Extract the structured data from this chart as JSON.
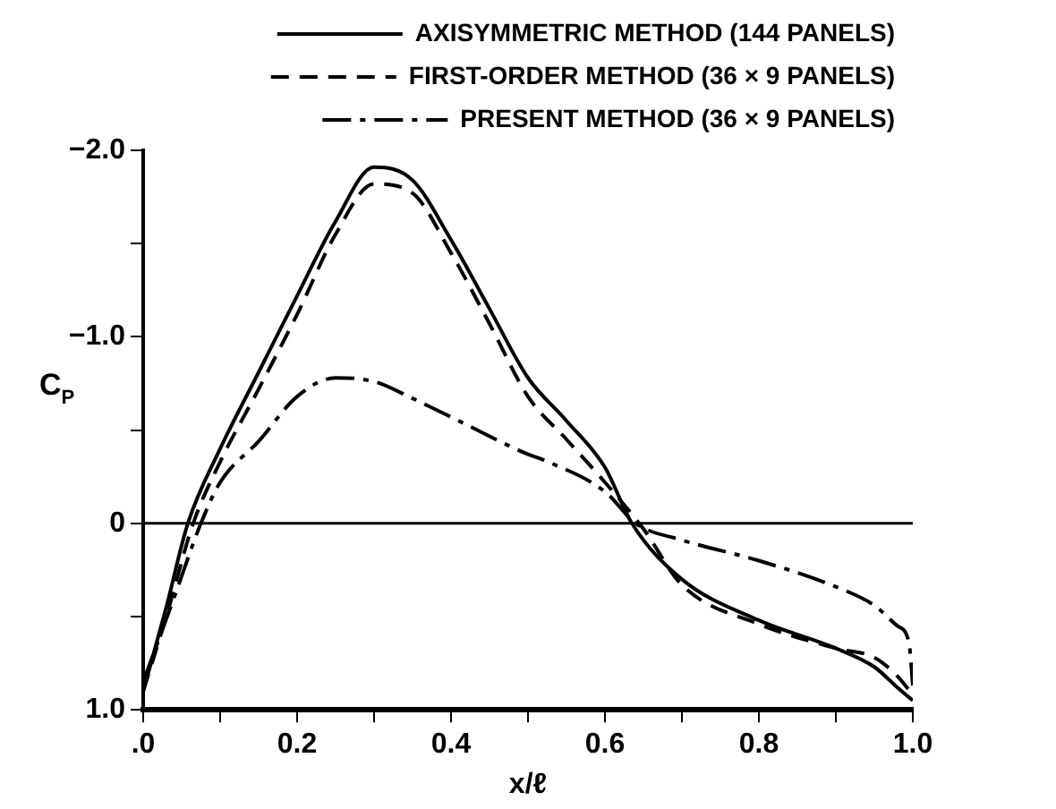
{
  "chart_data": {
    "type": "line",
    "xlabel": "x/ℓ",
    "ylabel": "C$_{P}$",
    "legend": "top",
    "marker": "none",
    "xlim": [
      0,
      1
    ],
    "xticks": [
      {
        "value": 0,
        "label": ".0"
      },
      {
        "value": 0.1,
        "label": null
      },
      0.2,
      {
        "value": 0.3,
        "label": null
      },
      0.4,
      {
        "value": 0.5,
        "label": null
      },
      0.6,
      {
        "value": 0.7,
        "label": null
      },
      0.8,
      {
        "value": 0.9,
        "label": null
      },
      {
        "value": 1,
        "label": "1.0"
      }
    ],
    "ylim": [
      1,
      -2
    ],
    "yticks": [
      {
        "value": -2,
        "label": "−2.0"
      },
      {
        "value": -1.5,
        "label": null
      },
      {
        "value": -1,
        "label": "−1.0"
      },
      {
        "value": -0.5,
        "label": null
      },
      0,
      {
        "value": 0.5,
        "label": null
      },
      {
        "value": 1,
        "label": "1.0"
      }
    ],
    "ref_lines": [
      {
        "axis": "y",
        "value": 0,
        "color": "#000000"
      }
    ],
    "series": [
      {
        "name": "AXISYMMETRIC METHOD (144 PANELS)",
        "color": "#000000",
        "line_style": "solid",
        "x": [
          0,
          0.03,
          0.058,
          0.1,
          0.15,
          0.2,
          0.25,
          0.3,
          0.35,
          0.4,
          0.45,
          0.5,
          0.55,
          0.6,
          0.635,
          0.7,
          0.8,
          0.9,
          0.95,
          0.98,
          1.0
        ],
        "values": [
          0.9,
          0.45,
          0,
          -0.4,
          -0.81,
          -1.22,
          -1.62,
          -1.91,
          -1.84,
          -1.52,
          -1.15,
          -0.78,
          -0.55,
          -0.3,
          0,
          0.3,
          0.52,
          0.67,
          0.77,
          0.88,
          0.95
        ]
      },
      {
        "name": "FIRST-ORDER METHOD (36 × 9 PANELS)",
        "color": "#000000",
        "line_style": "dashed",
        "x": [
          0,
          0.03,
          0.065,
          0.1,
          0.15,
          0.2,
          0.25,
          0.3,
          0.35,
          0.4,
          0.45,
          0.5,
          0.55,
          0.6,
          0.65,
          0.7,
          0.8,
          0.9,
          0.95,
          0.98,
          1.0
        ],
        "values": [
          0.9,
          0.5,
          0,
          -0.33,
          -0.72,
          -1.12,
          -1.55,
          -1.82,
          -1.77,
          -1.45,
          -1.07,
          -0.68,
          -0.45,
          -0.22,
          0.03,
          0.33,
          0.54,
          0.67,
          0.72,
          0.82,
          0.92
        ]
      },
      {
        "name": "PRESENT METHOD (36 × 9 PANELS)",
        "color": "#000000",
        "line_style": "dashdot",
        "x": [
          0,
          0.04,
          0.075,
          0.1,
          0.15,
          0.2,
          0.25,
          0.3,
          0.35,
          0.4,
          0.5,
          0.52,
          0.6,
          0.64,
          0.7,
          0.8,
          0.9,
          0.95,
          0.98,
          0.995,
          1.0
        ],
        "values": [
          0.85,
          0.4,
          0,
          -0.22,
          -0.44,
          -0.68,
          -0.78,
          -0.76,
          -0.67,
          -0.57,
          -0.37,
          -0.34,
          -0.17,
          0,
          0.09,
          0.2,
          0.34,
          0.44,
          0.55,
          0.64,
          0.87
        ]
      }
    ]
  }
}
